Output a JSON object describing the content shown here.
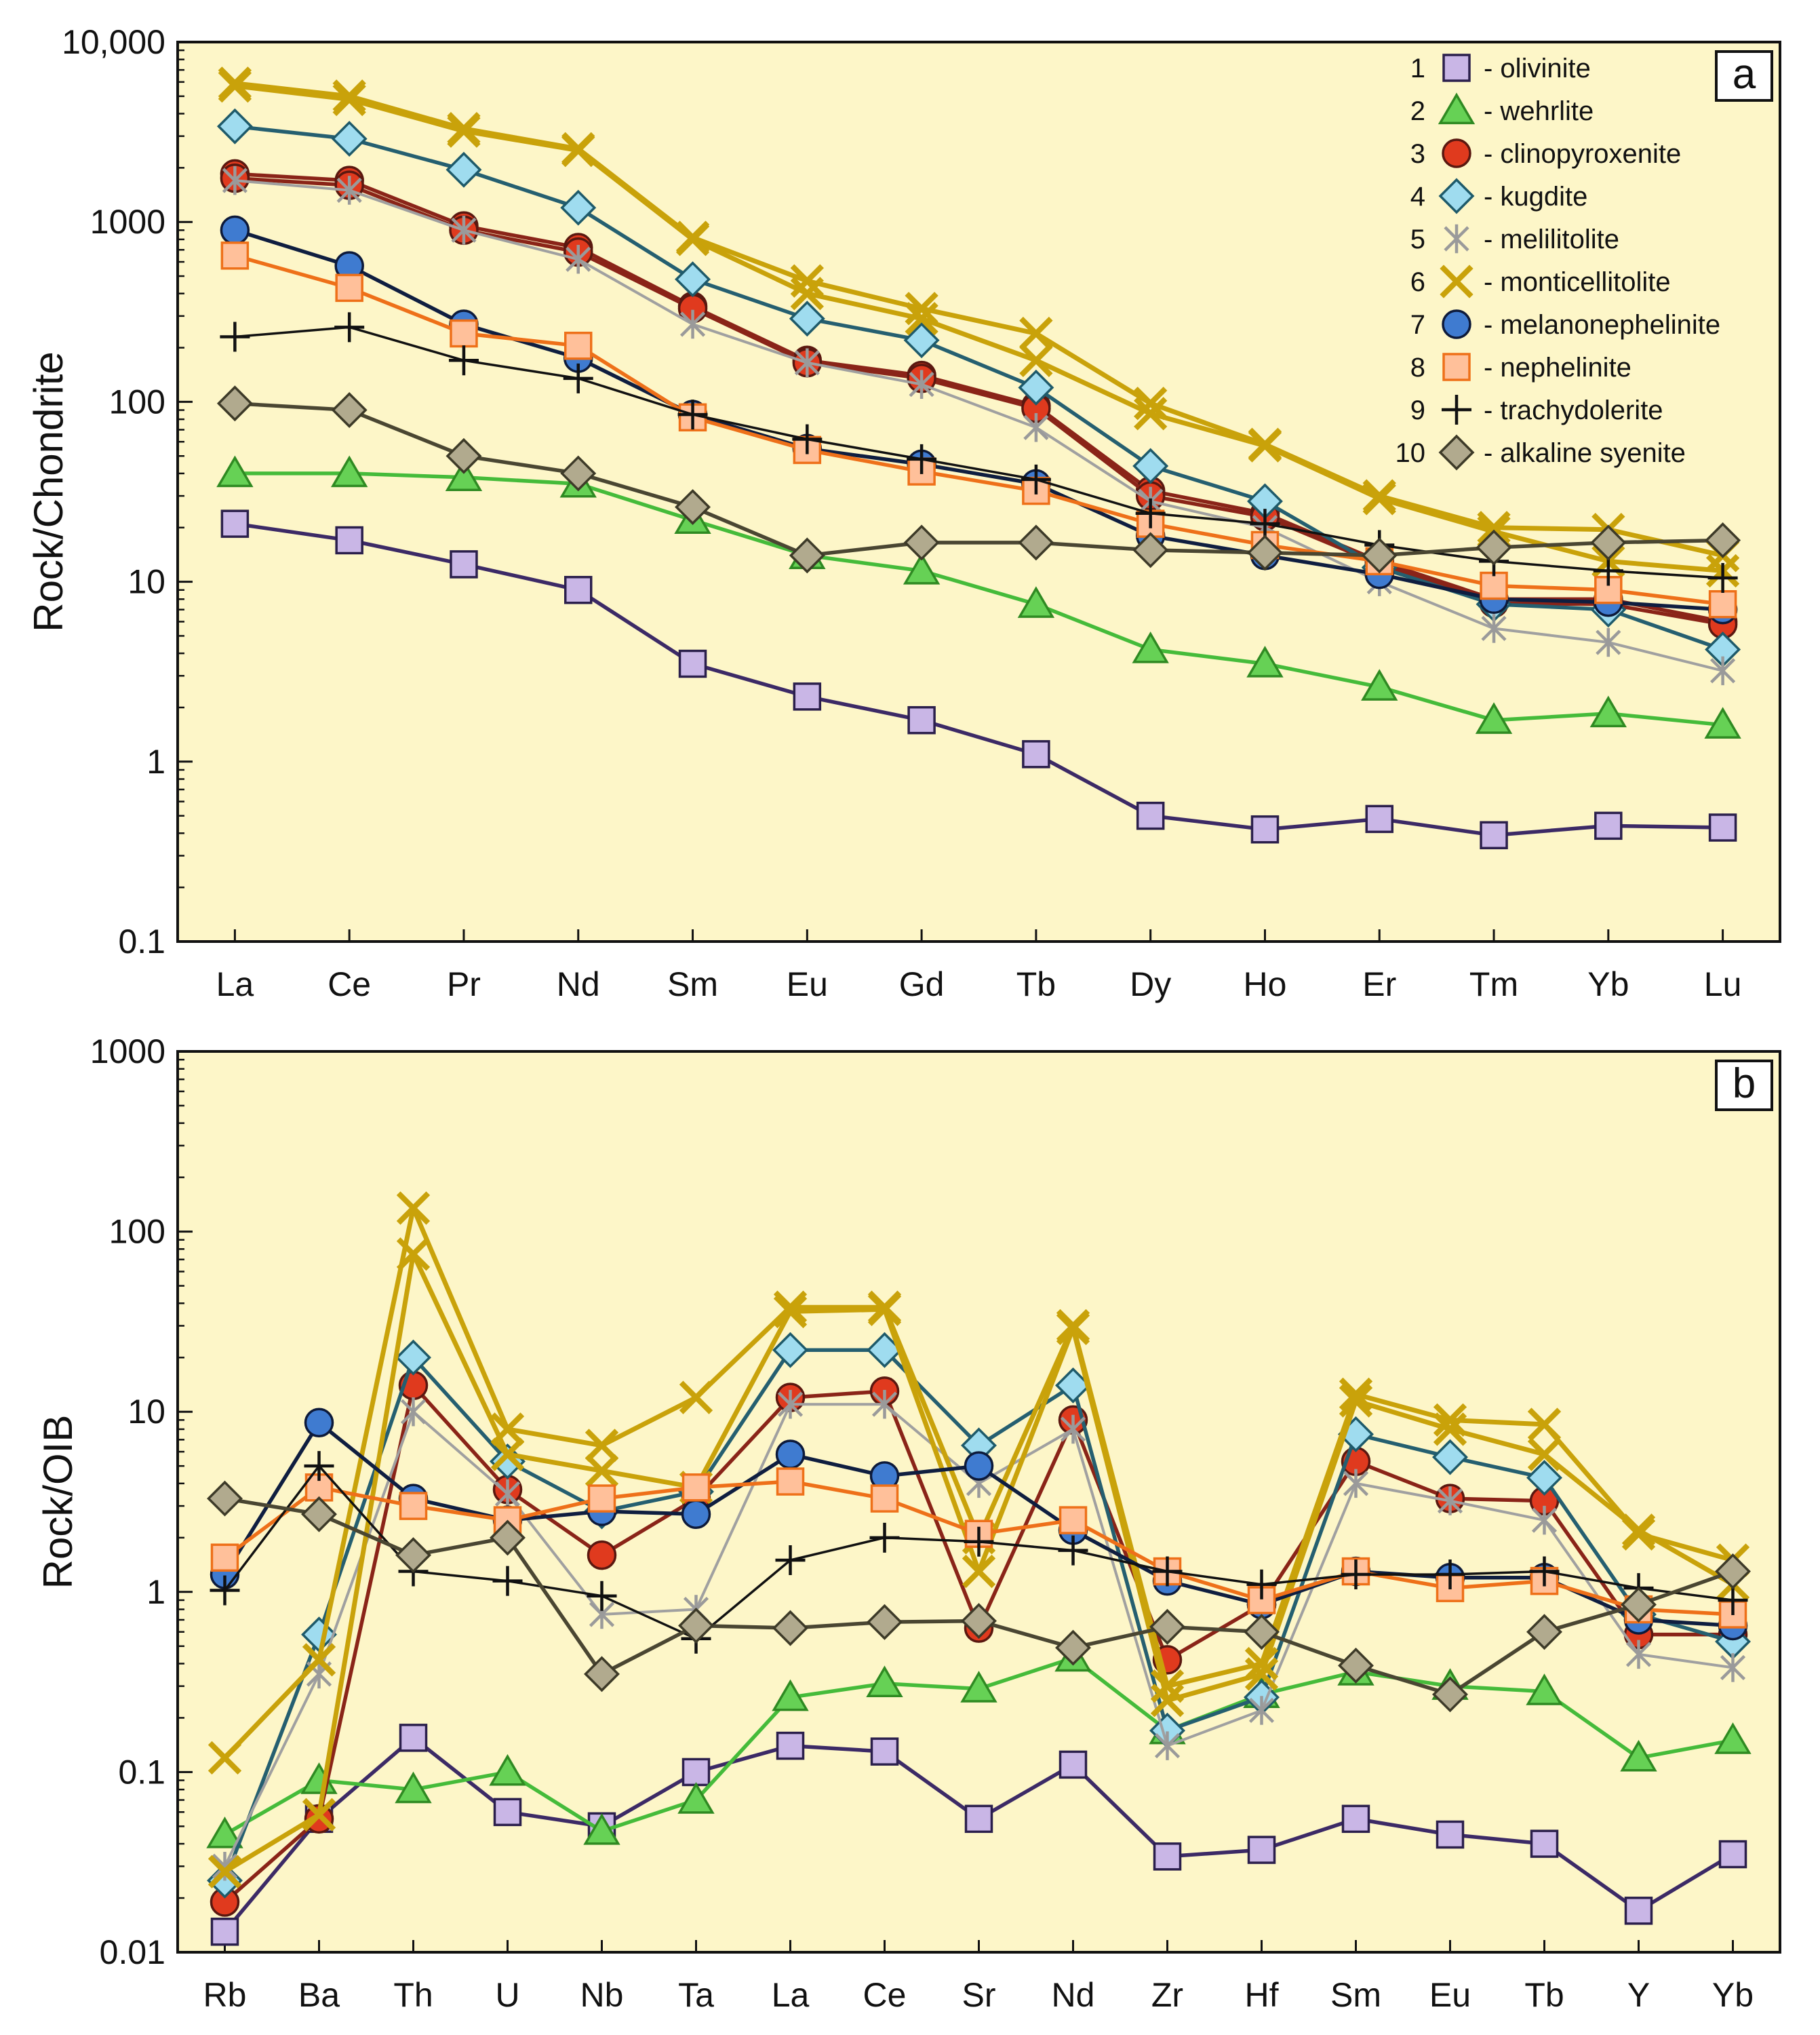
{
  "colors": {
    "background": "#fdf6c8",
    "panel_border": "#111111"
  },
  "series_styles": [
    {
      "id": 1,
      "marker": "square",
      "fill": "#c9b6e6",
      "stroke": "#2b1f4c",
      "line": "#3c2a66"
    },
    {
      "id": 2,
      "marker": "triangle",
      "fill": "#66d155",
      "stroke": "#2f8a22",
      "line": "#45bb3a"
    },
    {
      "id": 3,
      "marker": "circle",
      "fill": "#e03a1e",
      "stroke": "#5a1810",
      "line": "#8a2418"
    },
    {
      "id": 4,
      "marker": "diamond",
      "fill": "#9fdcef",
      "stroke": "#1e5a6a",
      "line": "#255f70"
    },
    {
      "id": 5,
      "marker": "star",
      "fill": "none",
      "stroke": "#9a9a9a",
      "line": "#a0a0a0"
    },
    {
      "id": 6,
      "marker": "x",
      "fill": "none",
      "stroke": "#c9a20a",
      "line": "#c9a20a"
    },
    {
      "id": 7,
      "marker": "circle",
      "fill": "#3f7bd0",
      "stroke": "#0d1a3a",
      "line": "#0f1e40"
    },
    {
      "id": 8,
      "marker": "square",
      "fill": "#ffc09a",
      "stroke": "#ee7019",
      "line": "#ee7019"
    },
    {
      "id": 9,
      "marker": "plus",
      "fill": "none",
      "stroke": "#111111",
      "line": "#111111"
    },
    {
      "id": 10,
      "marker": "diamond",
      "fill": "#b1aa8e",
      "stroke": "#3d3a28",
      "line": "#4a4632"
    }
  ],
  "legend": [
    {
      "num": "1",
      "label": "- olivinite"
    },
    {
      "num": "2",
      "label": "- wehrlite"
    },
    {
      "num": "3",
      "label": "- clinopyroxenite"
    },
    {
      "num": "4",
      "label": "- kugdite"
    },
    {
      "num": "5",
      "label": "- melilitolite"
    },
    {
      "num": "6",
      "label": "- monticellitolite"
    },
    {
      "num": "7",
      "label": "- melanonephelinite"
    },
    {
      "num": "8",
      "label": "- nephelinite"
    },
    {
      "num": "9",
      "label": "- trachydolerite"
    },
    {
      "num": "10",
      "label": "- alkaline syenite"
    }
  ],
  "chart_data": [
    {
      "type": "line",
      "panel": "a",
      "yscale": "log",
      "ylabel": "Rock/Chondrite",
      "ylim": [
        0.1,
        10000
      ],
      "yticks": [
        {
          "value": 0.1,
          "label": "0.1"
        },
        {
          "value": 1,
          "label": "1"
        },
        {
          "value": 10,
          "label": "10"
        },
        {
          "value": 100,
          "label": "100"
        },
        {
          "value": 1000,
          "label": "1000"
        },
        {
          "value": 10000,
          "label": "10,000"
        }
      ],
      "categories": [
        "La",
        "Ce",
        "Pr",
        "Nd",
        "Sm",
        "Eu",
        "Gd",
        "Tb",
        "Dy",
        "Ho",
        "Er",
        "Tm",
        "Yb",
        "Lu"
      ],
      "series": [
        {
          "id": 1,
          "name": "olivinite",
          "values": [
            21,
            17,
            12.5,
            9,
            3.5,
            2.3,
            1.7,
            1.1,
            0.5,
            0.42,
            0.48,
            0.39,
            0.44,
            0.43
          ]
        },
        {
          "id": 2,
          "name": "wehrlite",
          "values": [
            40,
            40,
            38,
            35,
            22,
            14,
            11.5,
            7.5,
            4.2,
            3.5,
            2.6,
            1.7,
            1.85,
            1.6
          ]
        },
        {
          "id": 3,
          "name": "clinopyroxenite",
          "values": [
            1850,
            1700,
            950,
            720,
            340,
            170,
            140,
            95,
            32,
            24,
            13,
            8,
            8,
            6
          ]
        },
        {
          "id": 3,
          "name": "clinopyroxenite",
          "values": [
            1750,
            1600,
            900,
            680,
            330,
            165,
            135,
            92,
            30,
            23,
            12.5,
            7.6,
            7.5,
            5.8
          ]
        },
        {
          "id": 4,
          "name": "kugdite",
          "values": [
            3400,
            2900,
            1950,
            1200,
            480,
            290,
            220,
            120,
            44,
            28,
            12,
            7.5,
            7,
            4.2
          ]
        },
        {
          "id": 5,
          "name": "melilitolite",
          "values": [
            1700,
            1500,
            900,
            620,
            270,
            165,
            125,
            72,
            28,
            20,
            10,
            5.5,
            4.6,
            3.2
          ]
        },
        {
          "id": 6,
          "name": "monticellitolite",
          "values": [
            5900,
            5000,
            3300,
            2550,
            820,
            470,
            330,
            240,
            98,
            58,
            30,
            20,
            19.5,
            14
          ]
        },
        {
          "id": 6,
          "name": "monticellitolite",
          "values": [
            5700,
            4800,
            3200,
            2500,
            800,
            400,
            290,
            170,
            86,
            57,
            29,
            19,
            13,
            11.5
          ]
        },
        {
          "id": 7,
          "name": "melanonephelinite",
          "values": [
            900,
            570,
            270,
            175,
            85,
            55,
            45,
            35,
            18,
            14,
            11,
            8,
            7.7,
            7
          ]
        },
        {
          "id": 8,
          "name": "nephelinite",
          "values": [
            650,
            430,
            240,
            205,
            82,
            54,
            41,
            32,
            21,
            16,
            13,
            9.5,
            9,
            7.5
          ]
        },
        {
          "id": 9,
          "name": "trachydolerite",
          "values": [
            230,
            260,
            170,
            135,
            85,
            62,
            48,
            37,
            24,
            21,
            16,
            13,
            11.5,
            10.5
          ]
        },
        {
          "id": 10,
          "name": "alkaline syenite",
          "values": [
            98,
            90,
            50,
            40,
            26,
            14,
            16.5,
            16.5,
            15,
            14.5,
            14,
            15.5,
            16.5,
            17
          ]
        }
      ]
    },
    {
      "type": "line",
      "panel": "b",
      "yscale": "log",
      "ylabel": "Rock/OIB",
      "ylim": [
        0.01,
        1000
      ],
      "yticks": [
        {
          "value": 0.01,
          "label": "0.01"
        },
        {
          "value": 0.1,
          "label": "0.1"
        },
        {
          "value": 1,
          "label": "1"
        },
        {
          "value": 10,
          "label": "10"
        },
        {
          "value": 100,
          "label": "100"
        },
        {
          "value": 1000,
          "label": "1000"
        }
      ],
      "categories": [
        "Rb",
        "Ba",
        "Th",
        "U",
        "Nb",
        "Ta",
        "La",
        "Ce",
        "Sr",
        "Nd",
        "Zr",
        "Hf",
        "Sm",
        "Eu",
        "Tb",
        "Y",
        "Yb"
      ],
      "series": [
        {
          "id": 1,
          "name": "olivinite",
          "values": [
            0.013,
            0.055,
            0.155,
            0.06,
            0.05,
            0.1,
            0.14,
            0.13,
            0.055,
            0.11,
            0.034,
            0.037,
            0.055,
            0.045,
            0.04,
            0.017,
            0.035
          ]
        },
        {
          "id": 2,
          "name": "wehrlite",
          "values": [
            0.045,
            0.09,
            0.08,
            0.1,
            0.047,
            0.07,
            0.26,
            0.31,
            0.29,
            0.43,
            0.17,
            0.27,
            0.36,
            0.3,
            0.28,
            0.12,
            0.15
          ]
        },
        {
          "id": 3,
          "name": "clinopyroxenite",
          "values": [
            0.019,
            0.055,
            14,
            3.7,
            1.6,
            3.3,
            12,
            13,
            0.63,
            9,
            0.42,
            0.85,
            5.3,
            3.3,
            3.2,
            0.58,
            0.58
          ]
        },
        {
          "id": 4,
          "name": "kugdite",
          "values": [
            0.025,
            0.58,
            20,
            5.3,
            2.8,
            3.6,
            22,
            22,
            6.5,
            14,
            0.17,
            0.26,
            7.5,
            5.6,
            4.3,
            0.75,
            0.53
          ]
        },
        {
          "id": 5,
          "name": "melilitolite",
          "values": [
            0.03,
            0.35,
            10,
            3.5,
            0.75,
            0.8,
            11,
            11,
            4,
            8,
            0.14,
            0.22,
            4,
            3.2,
            2.5,
            0.45,
            0.38
          ]
        },
        {
          "id": 6,
          "name": "monticellitolite",
          "values": [
            0.12,
            0.42,
            135,
            8,
            6.5,
            12,
            38,
            38,
            2,
            30,
            0.3,
            0.4,
            12.5,
            9,
            8.5,
            2.1,
            1.5
          ]
        },
        {
          "id": 6,
          "name": "monticellitolite",
          "values": [
            0.028,
            0.058,
            75,
            5.8,
            4.7,
            3.8,
            36,
            37,
            1.3,
            29,
            0.25,
            0.35,
            11.5,
            8,
            5.8,
            2.2,
            1.1
          ]
        },
        {
          "id": 7,
          "name": "melanonephelinite",
          "values": [
            1.25,
            8.7,
            3.3,
            2.5,
            2.8,
            2.7,
            5.8,
            4.4,
            5,
            2.2,
            1.15,
            0.85,
            1.3,
            1.2,
            1.2,
            0.7,
            0.65
          ]
        },
        {
          "id": 8,
          "name": "nephelinite",
          "values": [
            1.55,
            3.8,
            3,
            2.5,
            3.3,
            3.8,
            4.1,
            3.3,
            2.1,
            2.5,
            1.3,
            0.9,
            1.3,
            1.05,
            1.15,
            0.8,
            0.75
          ]
        },
        {
          "id": 9,
          "name": "trachydolerite",
          "values": [
            1.02,
            5,
            1.3,
            1.15,
            0.95,
            0.55,
            1.5,
            2,
            1.9,
            1.7,
            1.3,
            1.1,
            1.25,
            1.25,
            1.3,
            1.05,
            0.9
          ]
        },
        {
          "id": 10,
          "name": "alkaline syenite",
          "values": [
            3.3,
            2.7,
            1.6,
            2,
            0.35,
            0.65,
            0.63,
            0.68,
            0.69,
            0.49,
            0.64,
            0.6,
            0.39,
            0.27,
            0.6,
            0.85,
            1.3
          ]
        }
      ]
    }
  ]
}
